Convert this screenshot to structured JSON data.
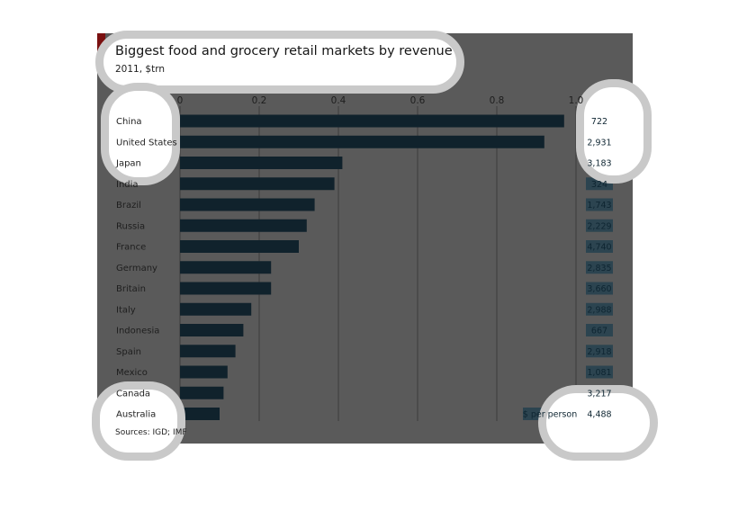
{
  "chart_data": {
    "type": "bar",
    "orientation": "horizontal",
    "title": "Biggest food and grocery retail markets by revenue",
    "subtitle": "2011, $trn",
    "source": "Sources: IGD; IMF",
    "xlim": [
      0,
      1.0
    ],
    "xticks": [
      "0",
      "0.2",
      "0.4",
      "0.6",
      "0.8",
      "1.0"
    ],
    "grid": true,
    "categories": [
      "China",
      "United States",
      "Japan",
      "India",
      "Brazil",
      "Russia",
      "France",
      "Germany",
      "Britain",
      "Italy",
      "Indonesia",
      "Spain",
      "Mexico",
      "Canada",
      "Australia"
    ],
    "values": [
      0.97,
      0.92,
      0.41,
      0.39,
      0.34,
      0.32,
      0.3,
      0.23,
      0.23,
      0.18,
      0.16,
      0.14,
      0.12,
      0.11,
      0.1
    ],
    "per_person_label": "$ per person",
    "per_person": [
      "722",
      "2,931",
      "3,183",
      "324",
      "1,743",
      "2,229",
      "4,740",
      "2,835",
      "3,660",
      "2,988",
      "667",
      "2,918",
      "1,081",
      "3,217",
      "4,488"
    ],
    "colors": {
      "panel": "#5a5a5a",
      "bar": "#10222c",
      "grid": "#3c3c3c",
      "badge": "#2c4450",
      "badge_text": "#0e2531",
      "accent": "#7a1010"
    }
  }
}
